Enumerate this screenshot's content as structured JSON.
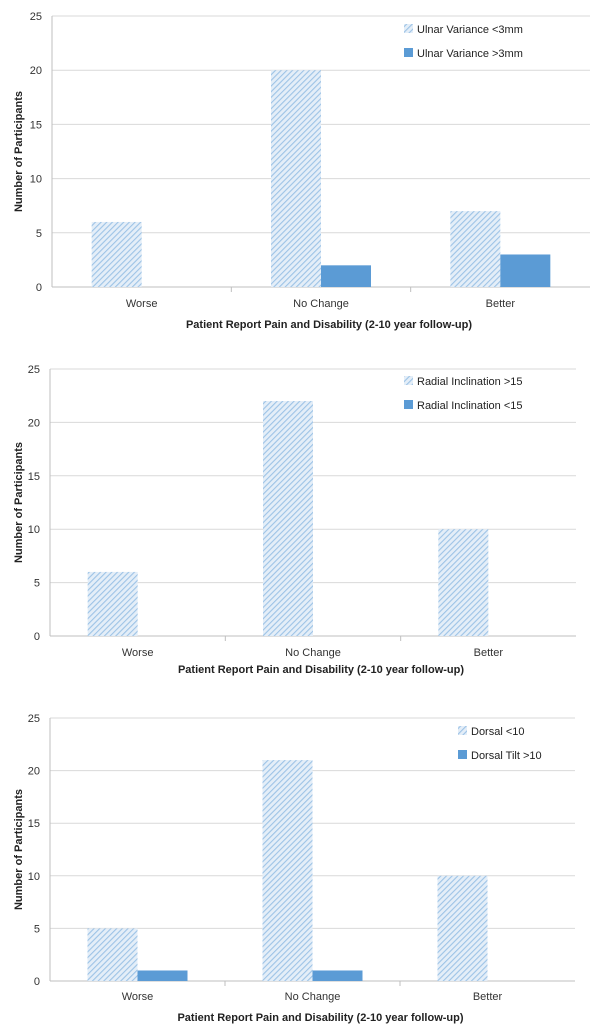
{
  "colors": {
    "hatch_fill": "#9dc3e6",
    "solid": "#5b9bd5",
    "grid": "#d9d9d9",
    "axis": "#bfbfbf"
  },
  "chart_data": [
    {
      "type": "bar",
      "categories": [
        "Worse",
        "No Change",
        "Better"
      ],
      "series": [
        {
          "name": "Ulnar Variance <3mm",
          "values": [
            6,
            20,
            7
          ],
          "style": "hatched"
        },
        {
          "name": "Ulnar Variance >3mm",
          "values": [
            0,
            2,
            3
          ],
          "style": "solid"
        }
      ],
      "xlabel": "Patient Report Pain and Disability (2-10 year follow-up)",
      "ylabel": "Number of Participants",
      "ylim": [
        0,
        25
      ],
      "yticks": [
        0,
        5,
        10,
        15,
        20,
        25
      ],
      "grid": true,
      "legend": "top-right"
    },
    {
      "type": "bar",
      "categories": [
        "Worse",
        "No Change",
        "Better"
      ],
      "series": [
        {
          "name": "Radial Inclination >15",
          "values": [
            6,
            22,
            10
          ],
          "style": "hatched"
        },
        {
          "name": "Radial Inclination <15",
          "values": [
            0,
            0,
            0
          ],
          "style": "solid"
        }
      ],
      "xlabel": "Patient Report Pain and Disability (2-10 year follow-up)",
      "ylabel": "Number of Participants",
      "ylim": [
        0,
        25
      ],
      "yticks": [
        0,
        5,
        10,
        15,
        20,
        25
      ],
      "grid": true,
      "legend": "top-right"
    },
    {
      "type": "bar",
      "categories": [
        "Worse",
        "No Change",
        "Better"
      ],
      "series": [
        {
          "name": "Dorsal <10",
          "values": [
            5,
            21,
            10
          ],
          "style": "hatched"
        },
        {
          "name": "Dorsal Tilt >10",
          "values": [
            1,
            1,
            0
          ],
          "style": "solid"
        }
      ],
      "xlabel": "Patient Report Pain and Disability (2-10 year follow-up)",
      "ylabel": "Number of Participants",
      "ylim": [
        0,
        25
      ],
      "yticks": [
        0,
        5,
        10,
        15,
        20,
        25
      ],
      "grid": true,
      "legend": "top-right"
    }
  ]
}
